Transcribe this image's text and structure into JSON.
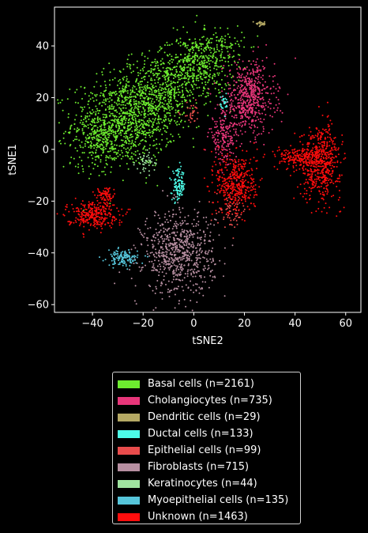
{
  "chart_data": {
    "type": "scatter",
    "title": "",
    "xlabel": "tSNE2",
    "ylabel": "tSNE1",
    "xlim": [
      -55,
      66
    ],
    "ylim": [
      -63,
      55
    ],
    "xticks": [
      -40,
      -20,
      0,
      20,
      40,
      60
    ],
    "yticks": [
      -60,
      -40,
      -20,
      0,
      20,
      40
    ],
    "grid": false,
    "legend_position": "below",
    "series": [
      {
        "name": "Basal cells (n=2161)",
        "count": 2161,
        "color": "#6dec2f",
        "clusters": [
          {
            "cx": -28,
            "cy": 10,
            "sx": 10,
            "sy": 8,
            "w": 0.42
          },
          {
            "cx": -15,
            "cy": 22,
            "sx": 9,
            "sy": 7,
            "w": 0.25
          },
          {
            "cx": 0,
            "cy": 32,
            "sx": 7,
            "sy": 6,
            "w": 0.18
          },
          {
            "cx": 8,
            "cy": 38,
            "sx": 6,
            "sy": 5,
            "w": 0.08
          },
          {
            "cx": -38,
            "cy": 2,
            "sx": 5,
            "sy": 5,
            "w": 0.07
          }
        ]
      },
      {
        "name": "Cholangiocytes (n=735)",
        "count": 735,
        "color": "#e8367a",
        "clusters": [
          {
            "cx": 22,
            "cy": 20,
            "sx": 5,
            "sy": 7,
            "w": 0.75
          },
          {
            "cx": 12,
            "cy": 5,
            "sx": 3,
            "sy": 5,
            "w": 0.25
          }
        ]
      },
      {
        "name": "Dendritic cells (n=29)",
        "count": 29,
        "color": "#b5a964",
        "clusters": [
          {
            "cx": 26.5,
            "cy": 48.5,
            "sx": 1,
            "sy": 0.5,
            "w": 1
          }
        ]
      },
      {
        "name": "Ductal cells (n=133)",
        "count": 133,
        "color": "#4dfce8",
        "clusters": [
          {
            "cx": -6,
            "cy": -14,
            "sx": 1.3,
            "sy": 3,
            "w": 0.8
          },
          {
            "cx": 12,
            "cy": 18,
            "sx": 0.8,
            "sy": 2,
            "w": 0.2
          }
        ]
      },
      {
        "name": "Epithelial cells (n=99)",
        "count": 99,
        "color": "#e94c4c",
        "clusters": [
          {
            "cx": 15,
            "cy": -24,
            "sx": 3,
            "sy": 3,
            "w": 0.7
          },
          {
            "cx": -1,
            "cy": 14,
            "sx": 2,
            "sy": 2,
            "w": 0.3
          }
        ]
      },
      {
        "name": "Fibroblasts (n=715)",
        "count": 715,
        "color": "#b78fa1",
        "clusters": [
          {
            "cx": -6,
            "cy": -40,
            "sx": 7,
            "sy": 8,
            "w": 1
          }
        ]
      },
      {
        "name": "Keratinocytes (n=44)",
        "count": 44,
        "color": "#9fe39f",
        "clusters": [
          {
            "cx": -19,
            "cy": -5,
            "sx": 2,
            "sy": 2,
            "w": 1
          }
        ]
      },
      {
        "name": "Myoepithelial cells (n=135)",
        "count": 135,
        "color": "#56c5da",
        "clusters": [
          {
            "cx": -28,
            "cy": -42,
            "sx": 3,
            "sy": 1.5,
            "w": 1
          }
        ]
      },
      {
        "name": "Unknown (n=1463)",
        "count": 1463,
        "color": "#ff0d0d",
        "clusters": [
          {
            "cx": 50,
            "cy": -5,
            "sx": 4,
            "sy": 7,
            "w": 0.38
          },
          {
            "cx": 40,
            "cy": -3,
            "sx": 4,
            "sy": 2,
            "w": 0.1
          },
          {
            "cx": 17,
            "cy": -13,
            "sx": 4,
            "sy": 6,
            "w": 0.27
          },
          {
            "cx": -40,
            "cy": -25,
            "sx": 5,
            "sy": 2.5,
            "w": 0.2
          },
          {
            "cx": -35,
            "cy": -18,
            "sx": 2,
            "sy": 2,
            "w": 0.05
          }
        ]
      }
    ]
  },
  "legend": {
    "items": [
      {
        "label": "Basal cells (n=2161)",
        "color": "#6dec2f"
      },
      {
        "label": "Cholangiocytes (n=735)",
        "color": "#e8367a"
      },
      {
        "label": "Dendritic cells (n=29)",
        "color": "#b5a964"
      },
      {
        "label": "Ductal cells (n=133)",
        "color": "#4dfce8"
      },
      {
        "label": "Epithelial cells (n=99)",
        "color": "#e94c4c"
      },
      {
        "label": "Fibroblasts (n=715)",
        "color": "#b78fa1"
      },
      {
        "label": "Keratinocytes (n=44)",
        "color": "#9fe39f"
      },
      {
        "label": "Myoepithelial cells (n=135)",
        "color": "#56c5da"
      },
      {
        "label": "Unknown (n=1463)",
        "color": "#ff0d0d"
      }
    ]
  }
}
